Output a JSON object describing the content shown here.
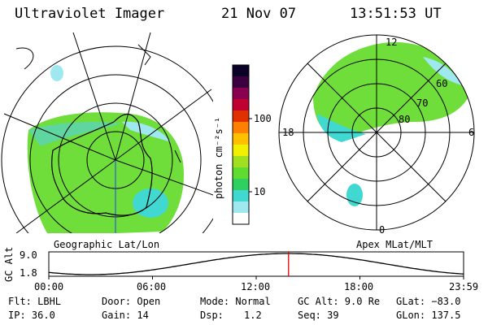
{
  "header": {
    "instrument": "Ultraviolet Imager",
    "date": "21 Nov 07",
    "time": "13:51:53 UT"
  },
  "colorbar": {
    "unit_label": "photon cm⁻²s⁻¹",
    "ticks": [
      "100",
      "10"
    ],
    "colors": [
      "#0a0028",
      "#3a0040",
      "#8a0050",
      "#c00030",
      "#e03000",
      "#ff8000",
      "#ffc000",
      "#f0f000",
      "#a0e020",
      "#60dc30",
      "#30d060",
      "#40d8d0",
      "#a0e8f0",
      "#ffffff"
    ]
  },
  "left_map": {
    "caption": "Geographic Lat/Lon"
  },
  "right_map": {
    "caption": "Apex MLat/MLT",
    "mlt_labels": {
      "top": "12",
      "left": "18",
      "right": "6",
      "bottom": "0"
    },
    "lat_labels": [
      "60",
      "70",
      "80"
    ]
  },
  "alt_plot": {
    "ylabel": "GC Alt",
    "yticks": [
      "9.0",
      "1.8"
    ],
    "xticks": [
      "00:00",
      "06:00",
      "12:00",
      "18:00",
      "23:59"
    ],
    "current_time_fraction": 0.578
  },
  "info": {
    "filter": "Flt: LBHL",
    "door": "Door: Open",
    "mode": "Mode: Normal",
    "gc_alt": "GC Alt: 9.0 Re",
    "glat": "GLat: −83.0",
    "ip": "IP: 36.0",
    "gain": "Gain: 14",
    "dsp_label": "Dsp:",
    "dsp_value": "1.2",
    "seq": "Seq: 39",
    "glon": "GLon: 137.5"
  }
}
